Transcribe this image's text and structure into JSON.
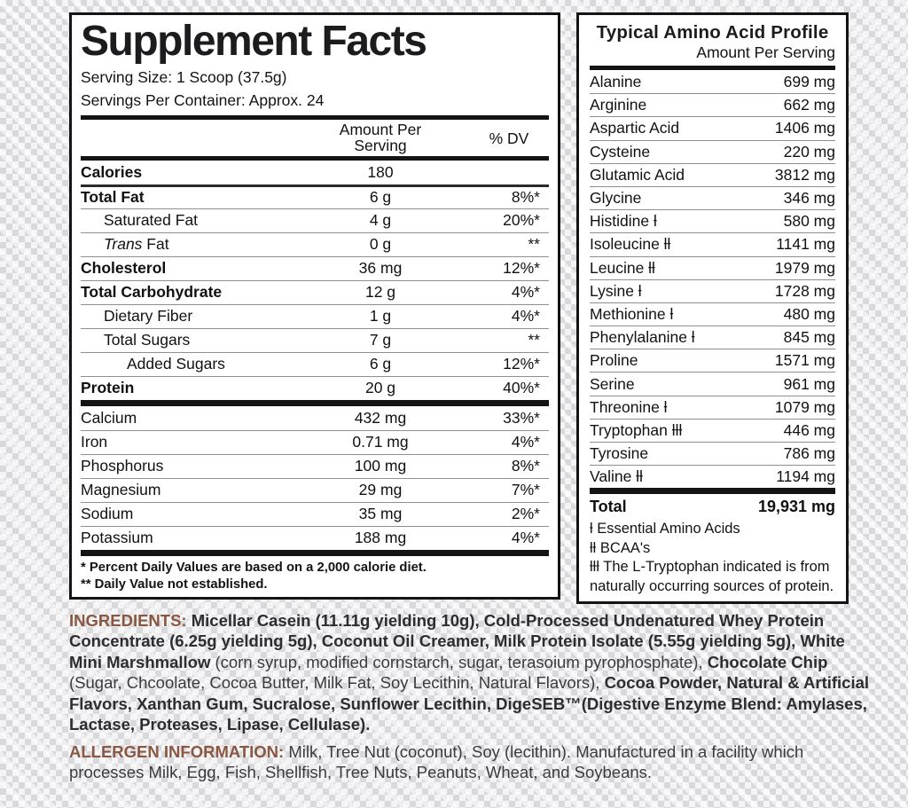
{
  "supplement_facts": {
    "title": "Supplement Facts",
    "serving_size": "Serving Size: 1 Scoop (37.5g)",
    "servings_per_container": "Servings Per Container: Approx. 24",
    "header": {
      "amount_line1": "Amount Per",
      "amount_line2": "Serving",
      "dv": "% DV"
    },
    "main_rows": [
      {
        "name": "Calories",
        "amount": "180",
        "dv": "",
        "bold": true
      },
      {
        "name": "Total Fat",
        "amount": "6 g",
        "dv": "8%*",
        "bold": true,
        "thick_top": true
      },
      {
        "name": "Saturated Fat",
        "amount": "4 g",
        "dv": "20%*",
        "indent": 1
      },
      {
        "name": "Trans Fat",
        "amount": "0 g",
        "dv": "**",
        "indent": 1,
        "italic_first_word": true
      },
      {
        "name": "Cholesterol",
        "amount": "36 mg",
        "dv": "12%*",
        "bold": true
      },
      {
        "name": "Total Carbohydrate",
        "amount": "12 g",
        "dv": "4%*",
        "bold": true
      },
      {
        "name": "Dietary Fiber",
        "amount": "1 g",
        "dv": "4%*",
        "indent": 1
      },
      {
        "name": "Total Sugars",
        "amount": "7 g",
        "dv": "**",
        "indent": 1
      },
      {
        "name": "Added Sugars",
        "amount": "6 g",
        "dv": "12%*",
        "indent": 2
      },
      {
        "name": "Protein",
        "amount": "20 g",
        "dv": "40%*",
        "bold": true
      }
    ],
    "mineral_rows": [
      {
        "name": "Calcium",
        "amount": "432 mg",
        "dv": "33%*"
      },
      {
        "name": "Iron",
        "amount": "0.71 mg",
        "dv": "4%*"
      },
      {
        "name": "Phosphorus",
        "amount": "100 mg",
        "dv": "8%*"
      },
      {
        "name": "Magnesium",
        "amount": "29 mg",
        "dv": "7%*"
      },
      {
        "name": "Sodium",
        "amount": "35 mg",
        "dv": "2%*"
      },
      {
        "name": "Potassium",
        "amount": "188 mg",
        "dv": "4%*"
      }
    ],
    "footnotes": [
      "* Percent Daily Values are based on a 2,000 calorie diet.",
      "** Daily Value not established."
    ]
  },
  "amino_profile": {
    "title": "Typical Amino Acid Profile",
    "subtitle": "Amount Per Serving",
    "rows": [
      {
        "name": "Alanine",
        "amount": "699 mg"
      },
      {
        "name": "Arginine",
        "amount": "662 mg"
      },
      {
        "name": "Aspartic Acid",
        "amount": "1406 mg"
      },
      {
        "name": "Cysteine",
        "amount": "220 mg"
      },
      {
        "name": "Glutamic Acid",
        "amount": "3812 mg"
      },
      {
        "name": "Glycine",
        "amount": "346 mg"
      },
      {
        "name": "Histidine ƚ",
        "amount": "580 mg"
      },
      {
        "name": "Isoleucine ƚƚ",
        "amount": "1141 mg"
      },
      {
        "name": "Leucine ƚƚ",
        "amount": "1979 mg"
      },
      {
        "name": "Lysine ƚ",
        "amount": "1728 mg"
      },
      {
        "name": "Methionine ƚ",
        "amount": "480 mg"
      },
      {
        "name": "Phenylalanine ƚ",
        "amount": "845 mg"
      },
      {
        "name": "Proline",
        "amount": "1571 mg"
      },
      {
        "name": "Serine",
        "amount": "961 mg"
      },
      {
        "name": "Threonine ƚ",
        "amount": "1079 mg"
      },
      {
        "name": "Tryptophan ƚƚƚ",
        "amount": "446 mg"
      },
      {
        "name": "Tyrosine",
        "amount": "786 mg"
      },
      {
        "name": "Valine ƚƚ",
        "amount": "1194 mg"
      }
    ],
    "total": {
      "label": "Total",
      "amount": "19,931 mg"
    },
    "footnotes": [
      "ƚ Essential Amino Acids",
      "ƚƚ BCAA's",
      "ƚƚƚ The L-Tryptophan indicated is from naturally occurring sources of protein."
    ]
  },
  "ingredients": {
    "label": "INGREDIENTS:",
    "segments": [
      {
        "text": " Micellar Casein (11.11g yielding 10g), Cold-Processed Undenatured Whey Protein Concentrate (6.25g yielding 5g), Coconut Oil Creamer, Milk Protein Isolate (5.55g yielding 5g), White Mini Marshmallow",
        "bold": true
      },
      {
        "text": " (corn syrup, modified cornstarch, sugar, terasoium pyrophosphate), ",
        "bold": false
      },
      {
        "text": "Chocolate Chip",
        "bold": true
      },
      {
        "text": " (Sugar, Chcoolate, Cocoa Butter, Milk Fat, Soy Lecithin, Natural Flavors), ",
        "bold": false
      },
      {
        "text": "Cocoa Powder, Natural & Artificial Flavors, Xanthan Gum, Sucralose, Sunflower Lecithin, DigeSEB™(Digestive Enzyme Blend: Amylases, Lactase, Proteases, Lipase, Cellulase).",
        "bold": true
      }
    ]
  },
  "allergen": {
    "label": "ALLERGEN INFORMATION:",
    "text": " Milk, Tree Nut (coconut), Soy (lecithin). Manufactured in a facility which processes Milk, Egg, Fish, Shellfish, Tree Nuts, Peanuts, Wheat, and Soybeans."
  },
  "colors": {
    "accent_brown": "#8a5742",
    "panel_border": "#141414"
  }
}
